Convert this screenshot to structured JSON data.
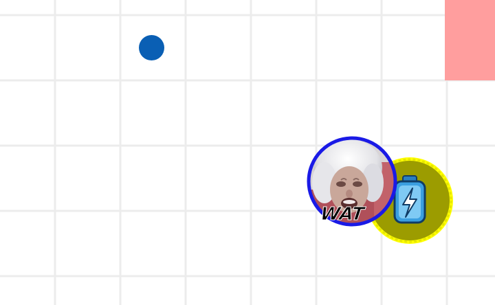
{
  "colors": {
    "background": "#ffffff",
    "grid_line": "#ececec",
    "food_pellet": "#0a5fb4",
    "zone": "#ff9e9e",
    "player_border": "#1a1ae6",
    "powerup_fill": "#9c9c00",
    "powerup_rim": "#ffff00",
    "battery_body": "#3b9fe0",
    "skin_hair": "#e8e8ea",
    "skin_face": "#c9a79a",
    "skin_bg": "#b0505a"
  },
  "entities": {
    "player": {
      "skin_text": "WAT",
      "skin_icon": "old-woman-face-icon"
    },
    "powerup": {
      "icon": "battery-lightning-icon"
    }
  }
}
